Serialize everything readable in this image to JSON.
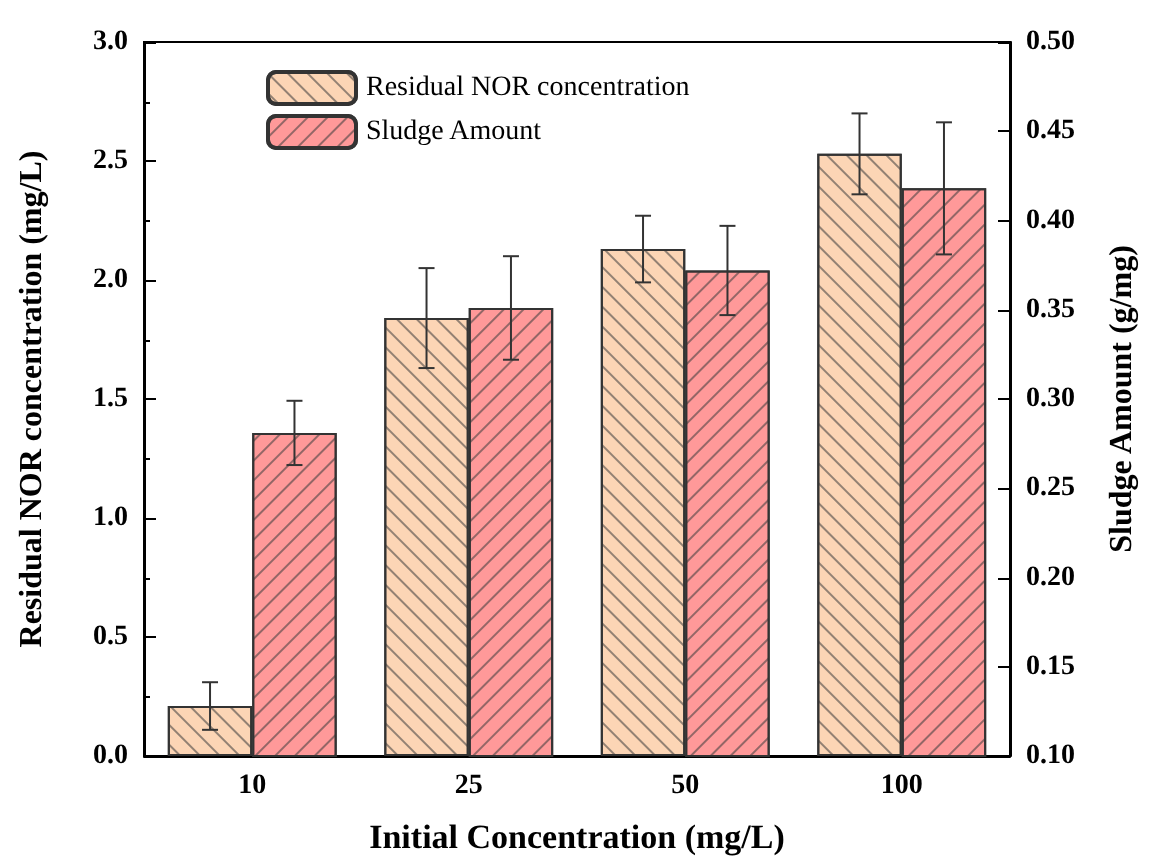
{
  "chart_data": {
    "type": "bar",
    "xlabel": "Initial Concentration (mg/L)",
    "ylabel": "Residual NOR concentration (mg/L)",
    "y2label": "Sludge Amount (g/mg)",
    "categories": [
      "10",
      "25",
      "50",
      "100"
    ],
    "series": [
      {
        "name": "Residual NOR concentration",
        "color": "#fcd5b5",
        "values": [
          0.21,
          1.84,
          2.13,
          2.53
        ],
        "errors": [
          0.1,
          0.21,
          0.14,
          0.17
        ]
      },
      {
        "name": "Sludge Amount",
        "color": "#ff9999",
        "axis": "y2",
        "values": [
          0.281,
          0.351,
          0.372,
          0.418
        ],
        "errors": [
          0.018,
          0.029,
          0.025,
          0.037
        ]
      }
    ],
    "ylim": [
      0,
      3
    ],
    "yticks": [
      {
        "value": 0,
        "label": "0.0"
      },
      0.5,
      {
        "value": 1,
        "label": "1.0"
      },
      1.5,
      {
        "value": 2,
        "label": "2.0"
      },
      2.5,
      {
        "value": 3,
        "label": "3.0"
      }
    ],
    "y2lim": [
      0.1,
      0.5
    ],
    "y2ticks": [
      {
        "value": 0.1,
        "label": "0.10"
      },
      0.15,
      {
        "value": 0.2,
        "label": "0.20"
      },
      0.25,
      {
        "value": 0.3,
        "label": "0.30"
      },
      0.35,
      {
        "value": 0.4,
        "label": "0.40"
      },
      0.45,
      {
        "value": 0.5,
        "label": "0.50"
      }
    ],
    "legend": "top left",
    "grid": false
  }
}
